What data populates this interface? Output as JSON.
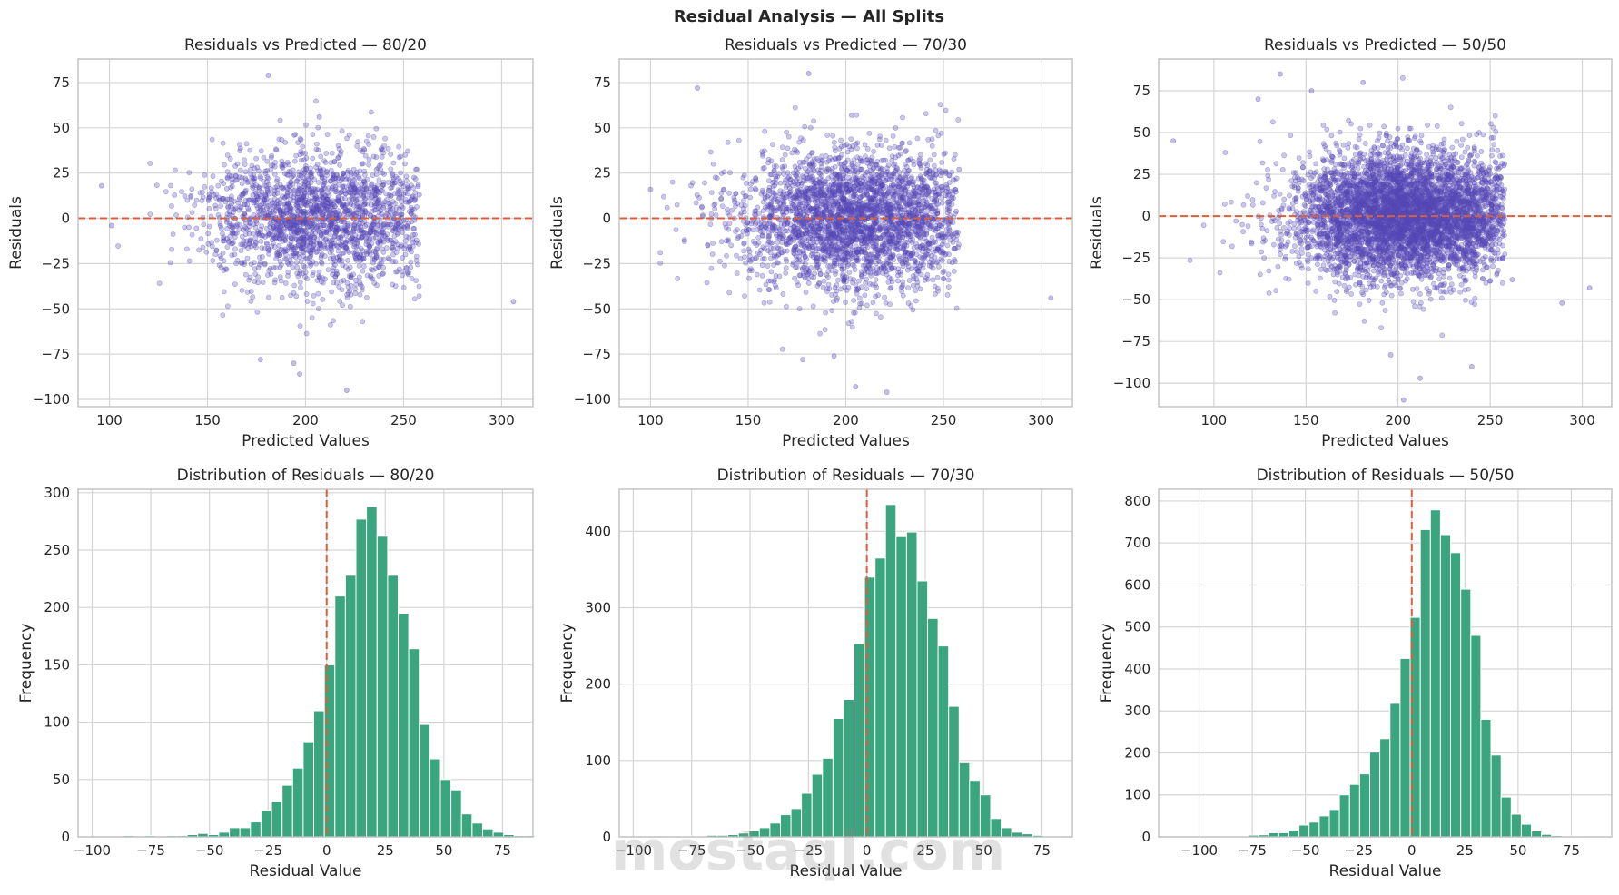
{
  "figure": {
    "title": "Residual Analysis — All Splits",
    "watermark": "mostaql.com"
  },
  "colors": {
    "scatter": "#5548b6",
    "hist": "#3aa57e",
    "ref_line": "#d95f3b",
    "grid": "#d5d5d5",
    "spine": "#c0c0c0"
  },
  "chart_data": [
    {
      "type": "scatter",
      "title": "Residuals vs Predicted — 80/20",
      "xlabel": "Predicted Values",
      "ylabel": "Residuals",
      "xlim": [
        84,
        316
      ],
      "ylim": [
        -104,
        88
      ],
      "xticks": [
        100,
        150,
        200,
        250,
        300
      ],
      "yticks": [
        -100,
        -75,
        -50,
        -25,
        0,
        25,
        50,
        75
      ],
      "hline": 0,
      "grid": true,
      "n_points": 2000,
      "density": {
        "x_center": 205,
        "x_sd": 30,
        "x_range": [
          95,
          306
        ],
        "y_sd": 19
      },
      "outliers": [
        [
          181,
          79
        ],
        [
          207,
          56
        ],
        [
          177,
          -78
        ],
        [
          194,
          -80
        ],
        [
          197,
          -86
        ],
        [
          221,
          -95
        ],
        [
          306,
          -46
        ],
        [
          101,
          -4
        ],
        [
          96,
          18
        ],
        [
          258,
          13
        ]
      ]
    },
    {
      "type": "scatter",
      "title": "Residuals vs Predicted — 70/30",
      "xlabel": "Predicted Values",
      "ylabel": "Residuals",
      "xlim": [
        84,
        316
      ],
      "ylim": [
        -104,
        88
      ],
      "xticks": [
        100,
        150,
        200,
        250,
        300
      ],
      "yticks": [
        -100,
        -75,
        -50,
        -25,
        0,
        25,
        50,
        75
      ],
      "hline": 0,
      "grid": true,
      "n_points": 3000,
      "density": {
        "x_center": 203,
        "x_sd": 30,
        "x_range": [
          97,
          306
        ],
        "y_sd": 19
      },
      "outliers": [
        [
          181,
          80
        ],
        [
          124,
          72
        ],
        [
          203,
          57
        ],
        [
          178,
          -78
        ],
        [
          194,
          -76
        ],
        [
          205,
          -93
        ],
        [
          221,
          -96
        ],
        [
          305,
          -44
        ],
        [
          100,
          16
        ],
        [
          258,
          27
        ]
      ]
    },
    {
      "type": "scatter",
      "title": "Residuals vs Predicted — 50/50",
      "xlabel": "Predicted Values",
      "ylabel": "Residuals",
      "xlim": [
        70,
        316
      ],
      "ylim": [
        -114,
        94
      ],
      "xticks": [
        100,
        150,
        200,
        250,
        300
      ],
      "yticks": [
        -100,
        -75,
        -50,
        -25,
        0,
        25,
        50,
        75
      ],
      "hline": 0,
      "grid": true,
      "n_points": 5000,
      "density": {
        "x_center": 203,
        "x_sd": 30,
        "x_range": [
          78,
          305
        ],
        "y_sd": 19
      },
      "outliers": [
        [
          136,
          85
        ],
        [
          181,
          80
        ],
        [
          153,
          75
        ],
        [
          124,
          70
        ],
        [
          78,
          45
        ],
        [
          203,
          -110
        ],
        [
          196,
          -83
        ],
        [
          212,
          -97
        ],
        [
          240,
          -90
        ],
        [
          289,
          -52
        ],
        [
          304,
          -43
        ],
        [
          262,
          -38
        ]
      ]
    },
    {
      "type": "bar",
      "subtype": "histogram",
      "title": "Distribution of Residuals — 80/20",
      "xlabel": "Residual Value",
      "ylabel": "Frequency",
      "xlim": [
        -106,
        88
      ],
      "ylim": [
        0,
        303
      ],
      "xticks": [
        -100,
        -75,
        -50,
        -25,
        0,
        25,
        50,
        75
      ],
      "yticks": [
        0,
        50,
        100,
        150,
        200,
        250,
        300
      ],
      "vline": 0,
      "grid": true,
      "bin_start": -100,
      "bin_width": 4.5,
      "values": [
        0,
        0,
        0,
        1,
        0,
        1,
        0,
        1,
        1,
        2,
        3,
        2,
        4,
        8,
        8,
        13,
        23,
        31,
        45,
        60,
        83,
        110,
        150,
        210,
        228,
        277,
        288,
        262,
        228,
        195,
        164,
        98,
        68,
        50,
        41,
        20,
        12,
        7,
        4,
        2,
        1,
        1
      ]
    },
    {
      "type": "bar",
      "subtype": "histogram",
      "title": "Distribution of Residuals — 70/30",
      "xlabel": "Residual Value",
      "ylabel": "Frequency",
      "xlim": [
        -106,
        88
      ],
      "ylim": [
        0,
        455
      ],
      "xticks": [
        -100,
        -75,
        -50,
        -25,
        0,
        25,
        50,
        75
      ],
      "yticks": [
        0,
        100,
        200,
        300,
        400
      ],
      "vline": 0,
      "grid": true,
      "bin_start": -100,
      "bin_width": 4.5,
      "values": [
        0,
        0,
        0,
        1,
        0,
        1,
        1,
        2,
        2,
        3,
        5,
        8,
        12,
        18,
        29,
        37,
        57,
        82,
        103,
        155,
        180,
        253,
        340,
        365,
        435,
        393,
        399,
        335,
        286,
        250,
        171,
        97,
        74,
        55,
        24,
        12,
        6,
        4,
        2,
        1,
        1,
        0
      ]
    },
    {
      "type": "bar",
      "subtype": "histogram",
      "title": "Distribution of Residuals — 50/50",
      "xlabel": "Residual Value",
      "ylabel": "Frequency",
      "xlim": [
        -119,
        94
      ],
      "ylim": [
        0,
        828
      ],
      "xticks": [
        -100,
        -75,
        -50,
        -25,
        0,
        25,
        50,
        75
      ],
      "yticks": [
        0,
        100,
        200,
        300,
        400,
        500,
        600,
        700,
        800
      ],
      "vline": 0,
      "grid": true,
      "bin_start": -110,
      "bin_width": 4.75,
      "values": [
        0,
        0,
        1,
        0,
        1,
        2,
        2,
        4,
        5,
        10,
        10,
        16,
        28,
        35,
        50,
        65,
        100,
        125,
        150,
        202,
        234,
        318,
        425,
        523,
        732,
        779,
        720,
        677,
        590,
        480,
        280,
        195,
        95,
        54,
        30,
        14,
        6,
        3,
        2,
        1,
        0,
        0
      ]
    }
  ]
}
